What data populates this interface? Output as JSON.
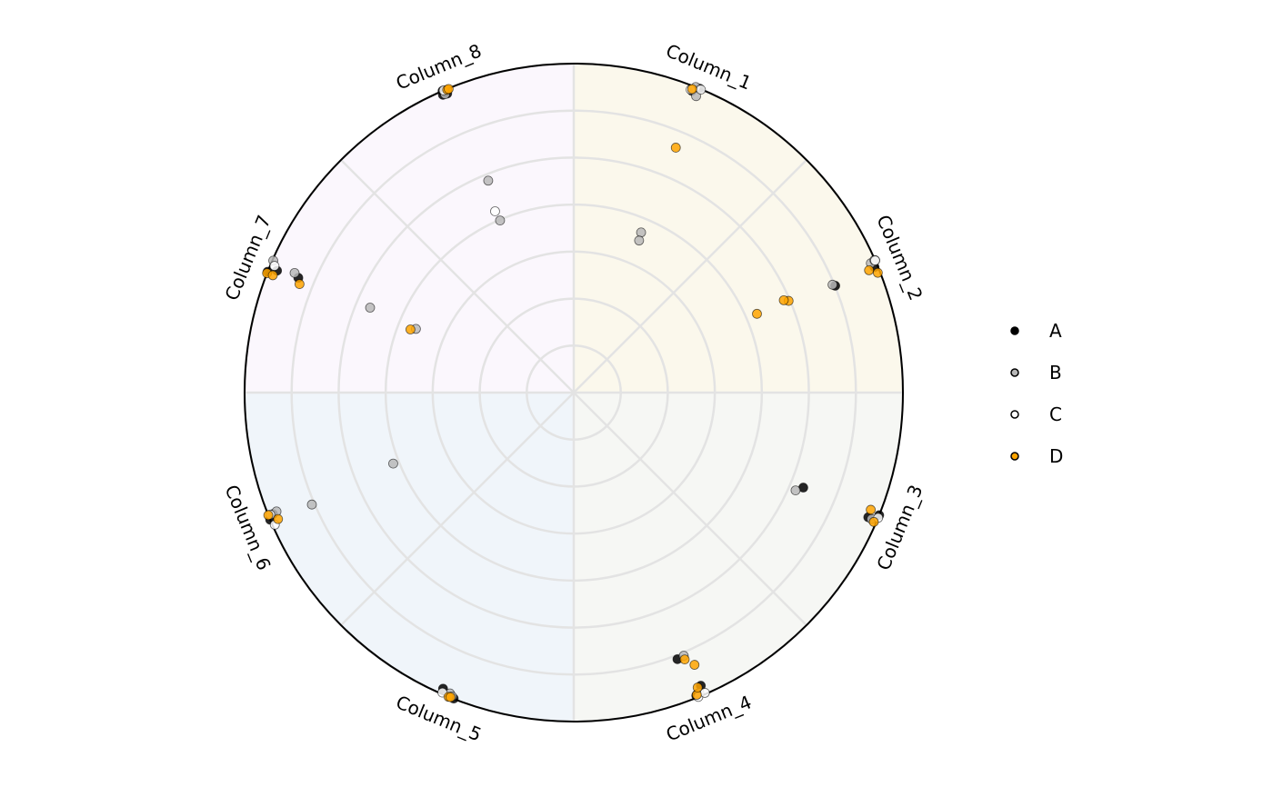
{
  "chart_data": {
    "type": "scatter",
    "coordinate_system": "polar",
    "title": "",
    "grid": true,
    "legend_position": "right",
    "radial_range": [
      0,
      1
    ],
    "categories": [
      "Column_1",
      "Column_2",
      "Column_3",
      "Column_4",
      "Column_5",
      "Column_6",
      "Column_7",
      "Column_8"
    ],
    "sector_tints": [
      "#fbf8ec",
      "#fbf8ec",
      "#f6f7f4",
      "#f6f7f4",
      "#f0f5fa",
      "#f0f5fa",
      "#fbf7fd",
      "#fbf7fd"
    ],
    "series": [
      {
        "name": "A",
        "color": "#000000",
        "points": [
          [
            1,
            1.0
          ],
          [
            1,
            0.99
          ],
          [
            2,
            0.99
          ],
          [
            2,
            1.0
          ],
          [
            2,
            0.86
          ],
          [
            3,
            1.0
          ],
          [
            3,
            0.98
          ],
          [
            3,
            0.76
          ],
          [
            4,
            1.0
          ],
          [
            4,
            0.99
          ],
          [
            4,
            0.98
          ],
          [
            4,
            0.86
          ],
          [
            5,
            1.0
          ],
          [
            5,
            0.99
          ],
          [
            6,
            1.0
          ],
          [
            6,
            0.99
          ],
          [
            7,
            1.0
          ],
          [
            7,
            0.98
          ],
          [
            7,
            0.91
          ],
          [
            8,
            1.0
          ],
          [
            8,
            0.99
          ],
          [
            8,
            0.98
          ]
        ]
      },
      {
        "name": "B",
        "color": "#b8b8b8",
        "points": [
          [
            1,
            1.0
          ],
          [
            1,
            0.98
          ],
          [
            1,
            0.53
          ],
          [
            1,
            0.5
          ],
          [
            2,
            0.99
          ],
          [
            2,
            0.86
          ],
          [
            2,
            1.0
          ],
          [
            3,
            0.98
          ],
          [
            3,
            0.74
          ],
          [
            4,
            0.99
          ],
          [
            4,
            0.86
          ],
          [
            5,
            0.99
          ],
          [
            5,
            1.0
          ],
          [
            6,
            0.98
          ],
          [
            6,
            0.86
          ],
          [
            6,
            0.58
          ],
          [
            7,
            0.99
          ],
          [
            7,
            0.92
          ],
          [
            7,
            0.68
          ],
          [
            7,
            0.52
          ],
          [
            8,
            0.99
          ],
          [
            8,
            0.69
          ],
          [
            8,
            0.56
          ]
        ]
      },
      {
        "name": "C",
        "color": "#ffffff",
        "points": [
          [
            1,
            0.99
          ],
          [
            1,
            1.0
          ],
          [
            2,
            0.99
          ],
          [
            3,
            1.0
          ],
          [
            4,
            1.0
          ],
          [
            4,
            0.99
          ],
          [
            5,
            1.0
          ],
          [
            6,
            1.0
          ],
          [
            6,
            0.99
          ],
          [
            7,
            0.98
          ],
          [
            8,
            1.0
          ],
          [
            8,
            0.61
          ]
        ]
      },
      {
        "name": "D",
        "color": "#ffa500",
        "points": [
          [
            1,
            1.0
          ],
          [
            1,
            0.8
          ],
          [
            2,
            1.0
          ],
          [
            2,
            0.98
          ],
          [
            2,
            0.71
          ],
          [
            2,
            0.7
          ],
          [
            2,
            0.61
          ],
          [
            3,
            1.0
          ],
          [
            3,
            0.98
          ],
          [
            4,
            1.0
          ],
          [
            4,
            0.98
          ],
          [
            4,
            0.88
          ],
          [
            4,
            0.9
          ],
          [
            5,
            1.0
          ],
          [
            5,
            0.99
          ],
          [
            6,
            1.0
          ],
          [
            6,
            0.98
          ],
          [
            7,
            1.0
          ],
          [
            7,
            0.99
          ],
          [
            7,
            0.9
          ],
          [
            7,
            0.53
          ],
          [
            8,
            1.0
          ],
          [
            8,
            0.99
          ]
        ]
      }
    ]
  }
}
